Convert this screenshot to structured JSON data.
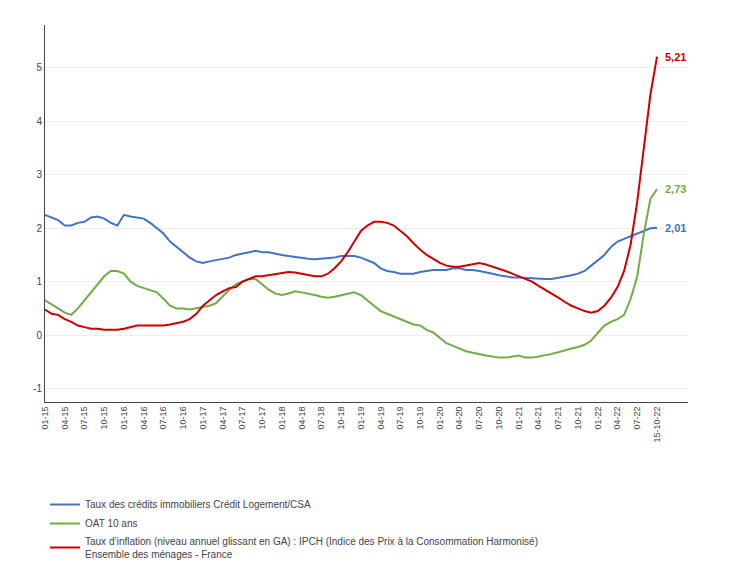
{
  "chart_data": {
    "type": "line",
    "categories": [
      "01-15",
      null,
      null,
      "04-15",
      null,
      null,
      "07-15",
      null,
      null,
      "10-15",
      null,
      null,
      "01-16",
      null,
      null,
      "04-16",
      null,
      null,
      "07-16",
      null,
      null,
      "10-16",
      null,
      null,
      "01-17",
      null,
      null,
      "04-17",
      null,
      null,
      "07-17",
      null,
      null,
      "10-17",
      null,
      null,
      "01-18",
      null,
      null,
      "04-18",
      null,
      null,
      "07-18",
      null,
      null,
      "10-18",
      null,
      null,
      "01-19",
      null,
      null,
      "04-19",
      null,
      null,
      "07-19",
      null,
      null,
      "10-19",
      null,
      null,
      "01-20",
      null,
      null,
      "04-20",
      null,
      null,
      "07-20",
      null,
      null,
      "10-20",
      null,
      null,
      "01-21",
      null,
      null,
      "04-21",
      null,
      null,
      "07-21",
      null,
      null,
      "10-21",
      null,
      null,
      "01-22",
      null,
      null,
      "04-22",
      null,
      null,
      "07-22",
      null,
      null,
      "15-10-22"
    ],
    "series": [
      {
        "name": "Taux des crédits immobiliers Crédit Logement/CSA",
        "color": "#4472c4",
        "values": [
          2.25,
          2.2,
          2.15,
          2.05,
          2.05,
          2.1,
          2.12,
          2.2,
          2.22,
          2.18,
          2.1,
          2.05,
          2.25,
          2.22,
          2.2,
          2.18,
          2.1,
          2.0,
          1.9,
          1.75,
          1.65,
          1.55,
          1.45,
          1.38,
          1.35,
          1.38,
          1.4,
          1.42,
          1.45,
          1.5,
          1.52,
          1.55,
          1.58,
          1.55,
          1.55,
          1.52,
          1.5,
          1.48,
          1.46,
          1.44,
          1.43,
          1.42,
          1.43,
          1.44,
          1.45,
          1.48,
          1.48,
          1.48,
          1.45,
          1.4,
          1.35,
          1.25,
          1.2,
          1.18,
          1.15,
          1.15,
          1.15,
          1.18,
          1.2,
          1.22,
          1.22,
          1.22,
          1.25,
          1.25,
          1.22,
          1.22,
          1.2,
          1.18,
          1.15,
          1.12,
          1.1,
          1.08,
          1.08,
          1.07,
          1.07,
          1.05,
          1.05,
          1.05,
          1.07,
          1.1,
          1.12,
          1.15,
          1.2,
          1.3,
          1.4,
          1.5,
          1.65,
          1.75,
          1.8,
          1.85,
          1.9,
          1.95,
          2.0,
          2.01
        ]
      },
      {
        "name": "OAT 10 ans",
        "color": "#70ad47",
        "values": [
          0.65,
          0.58,
          0.5,
          0.42,
          0.38,
          0.5,
          0.65,
          0.8,
          0.95,
          1.1,
          1.2,
          1.2,
          1.15,
          1.0,
          0.92,
          0.88,
          0.85,
          0.8,
          0.68,
          0.55,
          0.5,
          0.5,
          0.48,
          0.5,
          0.52,
          0.55,
          0.6,
          0.72,
          0.85,
          0.95,
          1.0,
          1.05,
          1.05,
          0.95,
          0.85,
          0.78,
          0.75,
          0.78,
          0.82,
          0.8,
          0.78,
          0.75,
          0.72,
          0.7,
          0.72,
          0.75,
          0.78,
          0.8,
          0.75,
          0.65,
          0.55,
          0.45,
          0.4,
          0.35,
          0.3,
          0.25,
          0.2,
          0.18,
          0.1,
          0.05,
          -0.05,
          -0.15,
          -0.2,
          -0.25,
          -0.3,
          -0.33,
          -0.36,
          -0.38,
          -0.4,
          -0.42,
          -0.42,
          -0.4,
          -0.38,
          -0.42,
          -0.42,
          -0.4,
          -0.38,
          -0.35,
          -0.32,
          -0.28,
          -0.25,
          -0.22,
          -0.18,
          -0.1,
          0.05,
          0.18,
          0.25,
          0.3,
          0.38,
          0.68,
          1.1,
          1.9,
          2.55,
          2.73
        ]
      },
      {
        "name": "Taux d’inflation (niveau annuel glissant en GA) : IPCH (Indice des Prix à la Consommation Harmonisé)\nEnsemble des ménages - France",
        "color": "#cc0000",
        "values": [
          0.48,
          0.4,
          0.38,
          0.3,
          0.25,
          0.18,
          0.15,
          0.12,
          0.12,
          0.1,
          0.1,
          0.1,
          0.12,
          0.15,
          0.18,
          0.18,
          0.18,
          0.18,
          0.18,
          0.2,
          0.22,
          0.25,
          0.3,
          0.4,
          0.55,
          0.65,
          0.75,
          0.82,
          0.88,
          0.9,
          1.0,
          1.05,
          1.1,
          1.1,
          1.12,
          1.15,
          1.17,
          1.18,
          1.17,
          1.15,
          1.12,
          1.1,
          1.1,
          1.15,
          1.25,
          1.38,
          1.55,
          1.75,
          1.95,
          2.05,
          2.12,
          2.12,
          2.1,
          2.05,
          1.95,
          1.85,
          1.72,
          1.6,
          1.5,
          1.42,
          1.35,
          1.3,
          1.28,
          1.28,
          1.3,
          1.32,
          1.35,
          1.32,
          1.28,
          1.25,
          1.2,
          1.15,
          1.1,
          1.05,
          1.0,
          0.92,
          0.85,
          0.78,
          0.7,
          0.62,
          0.55,
          0.5,
          0.45,
          0.42,
          0.45,
          0.55,
          0.7,
          0.9,
          1.2,
          1.7,
          2.5,
          3.5,
          4.5,
          5.21
        ]
      }
    ],
    "annotations": [
      {
        "text": "5,21",
        "value": 5.21,
        "color": "#cc0000"
      },
      {
        "text": "2,73",
        "value": 2.73,
        "color": "#70ad47"
      },
      {
        "text": "2,01",
        "value": 2.01,
        "color": "#4472c4"
      }
    ],
    "ylim": [
      -1.25,
      5.8
    ],
    "yticks": [
      -1,
      0,
      1,
      2,
      3,
      4,
      5
    ],
    "grid": true,
    "legend": "bottom"
  }
}
